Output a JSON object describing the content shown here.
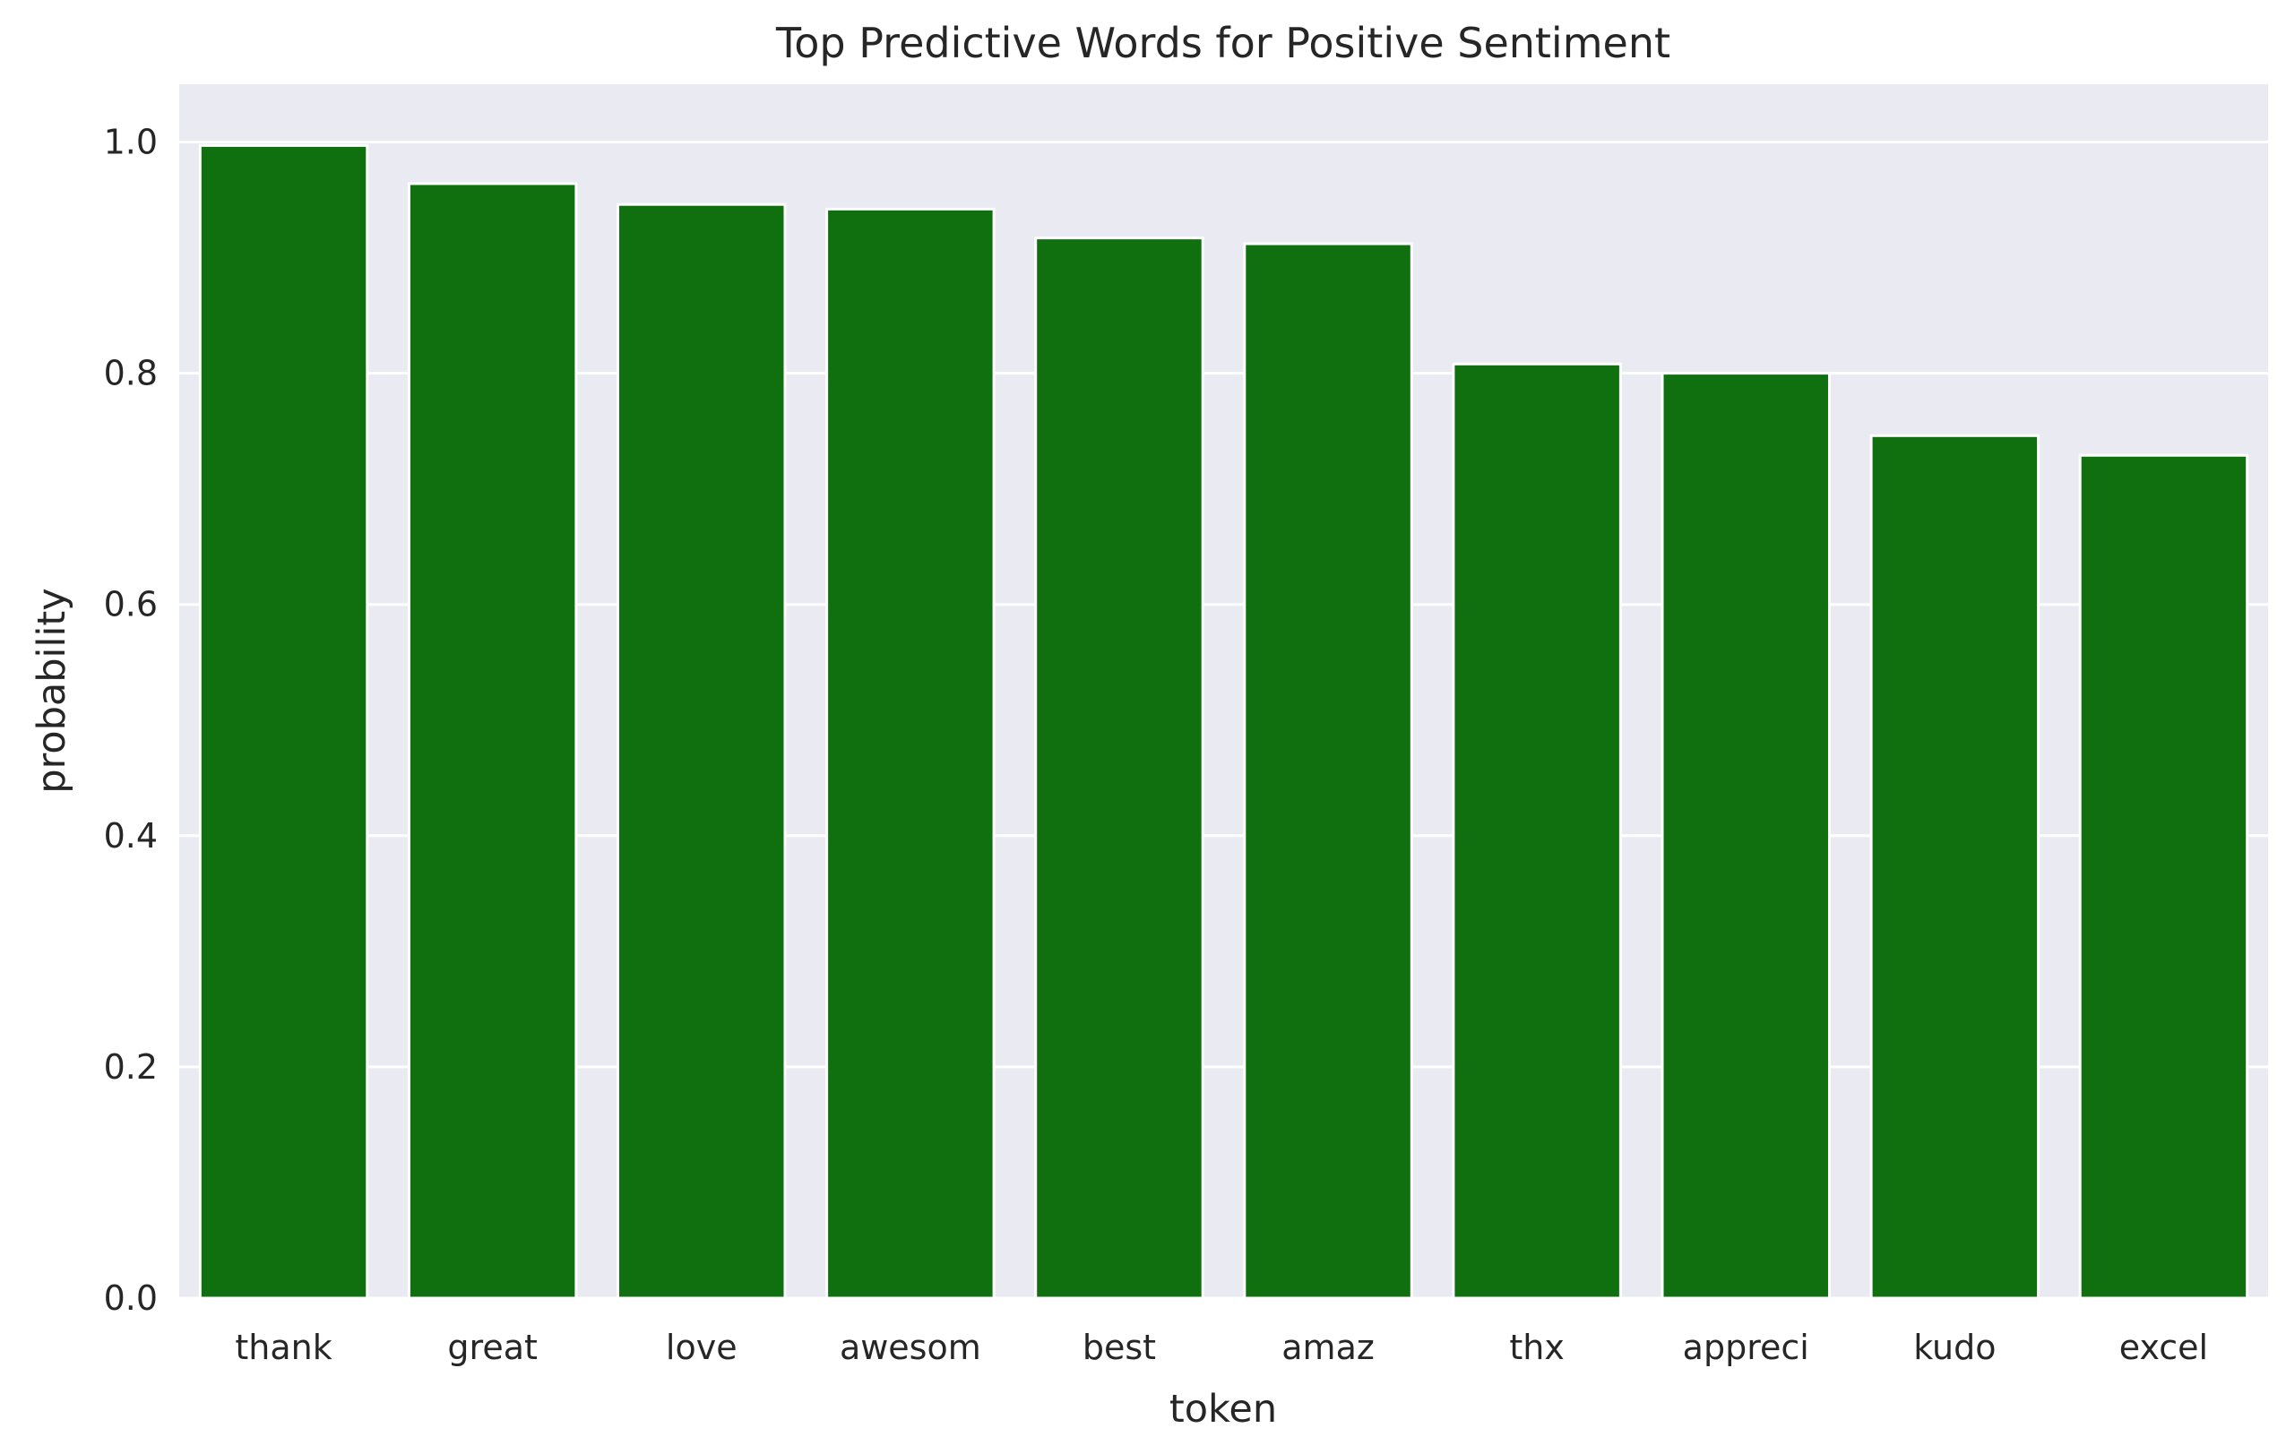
{
  "chart_data": {
    "type": "bar",
    "title": "Top Predictive Words for Positive Sentiment",
    "xlabel": "token",
    "ylabel": "probability",
    "categories": [
      "thank",
      "great",
      "love",
      "awesom",
      "best",
      "amaz",
      "thx",
      "appreci",
      "kudo",
      "excel"
    ],
    "values": [
      0.997,
      0.964,
      0.946,
      0.942,
      0.917,
      0.912,
      0.808,
      0.8,
      0.746,
      0.729
    ],
    "ylim": [
      0,
      1.05
    ],
    "yticks": [
      "0.0",
      "0.2",
      "0.4",
      "0.6",
      "0.8",
      "1.0"
    ],
    "grid": true,
    "legend": "none",
    "colors": {
      "bar": "#107010",
      "plot_background": "#EAEAF2",
      "grid": "#FFFFFF"
    }
  }
}
